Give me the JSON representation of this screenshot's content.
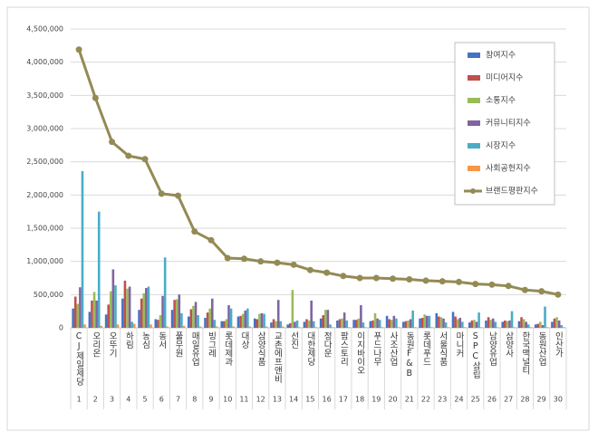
{
  "chart_data": {
    "type": "bar-line",
    "categories": [
      "CJ제일제당",
      "오리온",
      "오뚜기",
      "하림",
      "농심",
      "동서",
      "풀무원",
      "매일유업",
      "빙그레",
      "롯데제과",
      "대상",
      "삼양식품",
      "교촌에프앤비",
      "선진",
      "대한제당",
      "정다운",
      "팜스토리",
      "이지바이오",
      "푸드나무",
      "사조산업",
      "동원F&B",
      "롯데푸드",
      "서울식품",
      "마니커",
      "SPC삼립",
      "남양유업",
      "삼양사",
      "한국맥널티",
      "동원산업",
      "인산가"
    ],
    "ranks": [
      1,
      2,
      3,
      4,
      5,
      6,
      7,
      8,
      9,
      10,
      11,
      12,
      13,
      14,
      15,
      16,
      17,
      18,
      19,
      20,
      21,
      22,
      23,
      24,
      25,
      26,
      27,
      28,
      29,
      30
    ],
    "ylim": [
      0,
      4500000
    ],
    "yticks": [
      0,
      {
        "value": 500000,
        "label": "500,000"
      },
      {
        "value": 1000000,
        "label": "1,000,000"
      },
      {
        "value": 1500000,
        "label": "1,500,000"
      },
      {
        "value": 2000000,
        "label": "2,000,000"
      },
      {
        "value": 2500000,
        "label": "2,500,000"
      },
      {
        "value": 3000000,
        "label": "3,000,000"
      },
      {
        "value": 3500000,
        "label": "3,500,000"
      },
      {
        "value": 4000000,
        "label": "4,000,000"
      },
      {
        "value": 4500000,
        "label": "4,500,000"
      }
    ],
    "grid": true,
    "legend": "upper-right",
    "series": [
      {
        "name": "참여지수",
        "color": "#4472c4",
        "kind": "bar",
        "values": [
          290000,
          240000,
          200000,
          440000,
          270000,
          130000,
          270000,
          170000,
          150000,
          100000,
          170000,
          140000,
          80000,
          50000,
          90000,
          140000,
          110000,
          120000,
          100000,
          180000,
          90000,
          140000,
          220000,
          240000,
          80000,
          110000,
          90000,
          100000,
          50000,
          90000
        ]
      },
      {
        "name": "미디어지수",
        "color": "#c0504d",
        "kind": "bar",
        "values": [
          470000,
          410000,
          350000,
          710000,
          440000,
          120000,
          420000,
          280000,
          230000,
          100000,
          180000,
          130000,
          130000,
          70000,
          130000,
          190000,
          130000,
          120000,
          110000,
          130000,
          100000,
          150000,
          170000,
          170000,
          110000,
          160000,
          110000,
          160000,
          60000,
          140000
        ]
      },
      {
        "name": "소통지수",
        "color": "#9bbb59",
        "kind": "bar",
        "values": [
          360000,
          540000,
          550000,
          590000,
          520000,
          190000,
          430000,
          330000,
          290000,
          130000,
          210000,
          210000,
          100000,
          570000,
          110000,
          270000,
          140000,
          140000,
          220000,
          120000,
          110000,
          200000,
          160000,
          130000,
          120000,
          120000,
          100000,
          130000,
          90000,
          160000
        ]
      },
      {
        "name": "커뮤니티지수",
        "color": "#8064a2",
        "kind": "bar",
        "values": [
          610000,
          410000,
          880000,
          620000,
          600000,
          480000,
          500000,
          390000,
          440000,
          340000,
          260000,
          220000,
          420000,
          90000,
          410000,
          270000,
          230000,
          340000,
          140000,
          180000,
          130000,
          180000,
          140000,
          150000,
          90000,
          140000,
          110000,
          90000,
          40000,
          110000
        ]
      },
      {
        "name": "시장지수",
        "color": "#4bacc6",
        "kind": "bar",
        "values": [
          2360000,
          1750000,
          640000,
          90000,
          620000,
          1060000,
          220000,
          190000,
          120000,
          290000,
          290000,
          210000,
          100000,
          110000,
          100000,
          50000,
          110000,
          80000,
          120000,
          140000,
          260000,
          180000,
          80000,
          90000,
          230000,
          90000,
          250000,
          50000,
          320000,
          40000
        ]
      },
      {
        "name": "사회공헌지수",
        "color": "#f79646",
        "kind": "bar",
        "values": [
          50000,
          30000,
          50000,
          60000,
          50000,
          20000,
          30000,
          20000,
          20000,
          20000,
          20000,
          20000,
          20000,
          10000,
          10000,
          10000,
          10000,
          10000,
          10000,
          10000,
          10000,
          10000,
          10000,
          10000,
          10000,
          10000,
          10000,
          10000,
          10000,
          10000
        ]
      },
      {
        "name": "브랜드평판지수",
        "color": "#948a54",
        "kind": "line",
        "values": [
          4190000,
          3460000,
          2800000,
          2590000,
          2540000,
          2020000,
          1990000,
          1450000,
          1320000,
          1050000,
          1040000,
          1000000,
          980000,
          950000,
          870000,
          830000,
          780000,
          750000,
          750000,
          740000,
          730000,
          710000,
          700000,
          690000,
          660000,
          650000,
          630000,
          570000,
          550000,
          500000
        ]
      }
    ]
  }
}
